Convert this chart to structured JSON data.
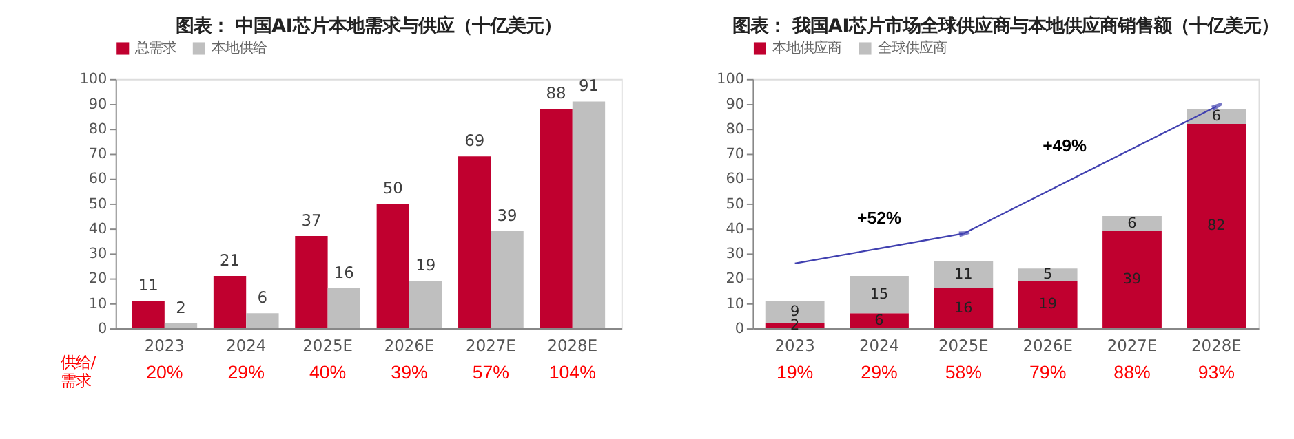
{
  "chart_data": [
    {
      "type": "bar",
      "title": "图表： 中国AI芯片本地需求与供应（十亿美元）",
      "categories": [
        "2023",
        "2024",
        "2025E",
        "2026E",
        "2027E",
        "2028E"
      ],
      "series": [
        {
          "name": "总需求",
          "color": "#c0002f",
          "values": [
            11,
            21,
            37,
            50,
            69,
            88
          ]
        },
        {
          "name": "本地供给",
          "color": "#bfbfbf",
          "values": [
            2,
            6,
            16,
            19,
            39,
            91
          ]
        }
      ],
      "ylim": [
        0,
        100
      ],
      "yticks": [
        0,
        10,
        20,
        30,
        40,
        50,
        60,
        70,
        80,
        90,
        100
      ],
      "data_labels": true,
      "grid": false,
      "legend": "top",
      "annotations": [
        "供给/需求",
        "20%",
        "29%",
        "40%",
        "39%",
        "57%",
        "104%"
      ]
    },
    {
      "type": "bar",
      "title": "图表： 我国AI芯片市场全球供应商与本地供应商销售额（十亿美元）",
      "categories": [
        "2023",
        "2024",
        "2025E",
        "2026E",
        "2027E",
        "2028E"
      ],
      "stacked": true,
      "series": [
        {
          "name": "本地供应商",
          "color": "#c0002f",
          "values": [
            2,
            6,
            16,
            19,
            39,
            82
          ]
        },
        {
          "name": "全球供应商",
          "color": "#bfbfbf",
          "values": [
            9,
            15,
            11,
            5,
            6,
            6
          ]
        }
      ],
      "ylim": [
        0,
        100
      ],
      "yticks": [
        0,
        10,
        20,
        30,
        40,
        50,
        60,
        70,
        80,
        90,
        100
      ],
      "data_labels": true,
      "grid": false,
      "legend": "top",
      "annotations": [
        "+52%",
        "+49%",
        "19%",
        "29%",
        "58%",
        "79%",
        "88%",
        "93%"
      ]
    }
  ]
}
